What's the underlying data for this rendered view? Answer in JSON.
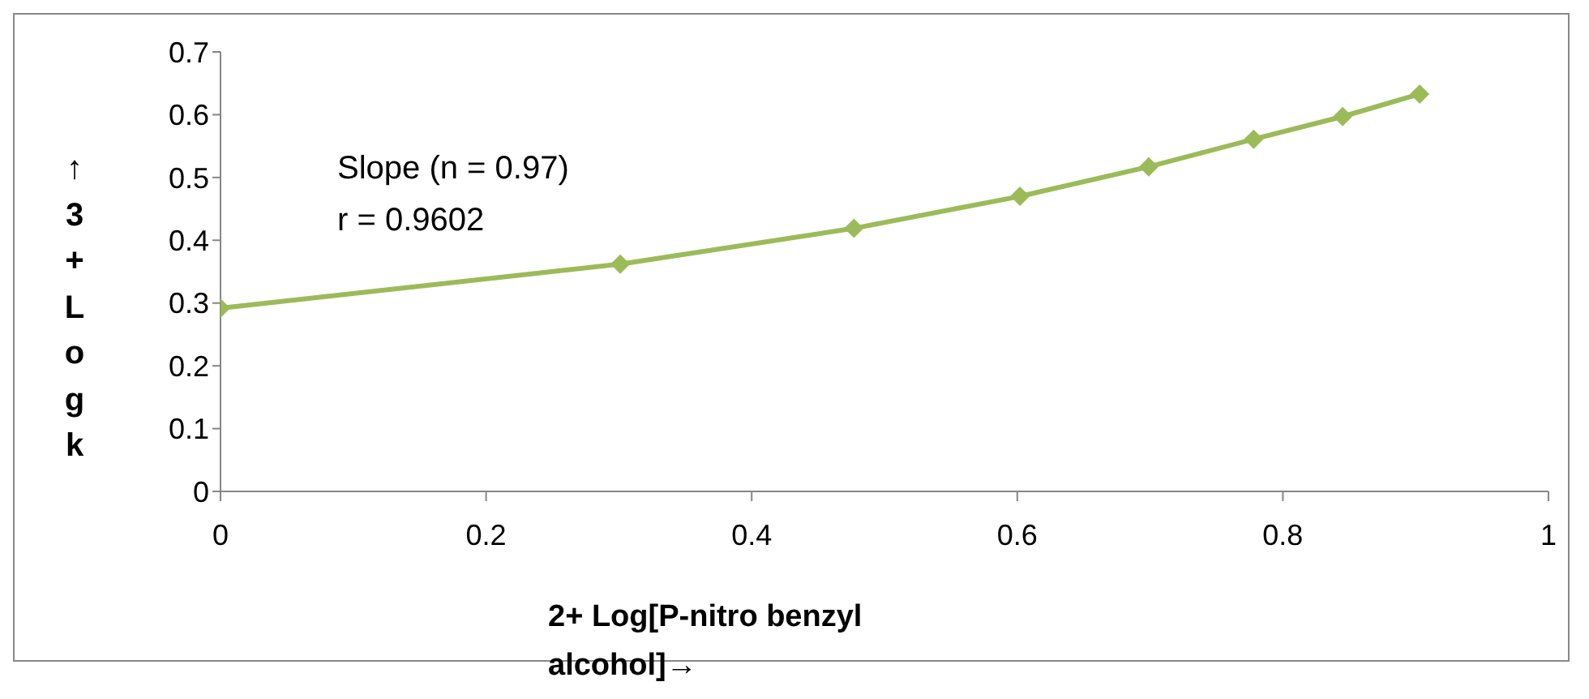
{
  "chart_data": {
    "type": "line",
    "xlabel": "2+ Log[P-nitro benzyl alcohol]→",
    "ylabel": "↑3+Logk",
    "annotations": [
      "Slope (n = 0.97)",
      "r = 0.9602"
    ],
    "x": [
      0,
      0.301,
      0.477,
      0.602,
      0.699,
      0.778,
      0.845,
      0.903
    ],
    "series": [
      {
        "color": "#9bbb59",
        "values": [
          0.292,
          0.362,
          0.419,
          0.47,
          0.517,
          0.561,
          0.597,
          0.633
        ]
      }
    ],
    "xlim": [
      0,
      1
    ],
    "xticks": [
      0,
      0.2,
      0.4,
      0.6,
      0.8,
      1
    ],
    "ylim": [
      0,
      0.7
    ],
    "yticks": [
      0,
      0.1,
      0.2,
      0.3,
      0.4,
      0.5,
      0.6,
      0.7
    ],
    "grid": false,
    "legend": false,
    "marker": "diamond",
    "line_style": "solid"
  }
}
